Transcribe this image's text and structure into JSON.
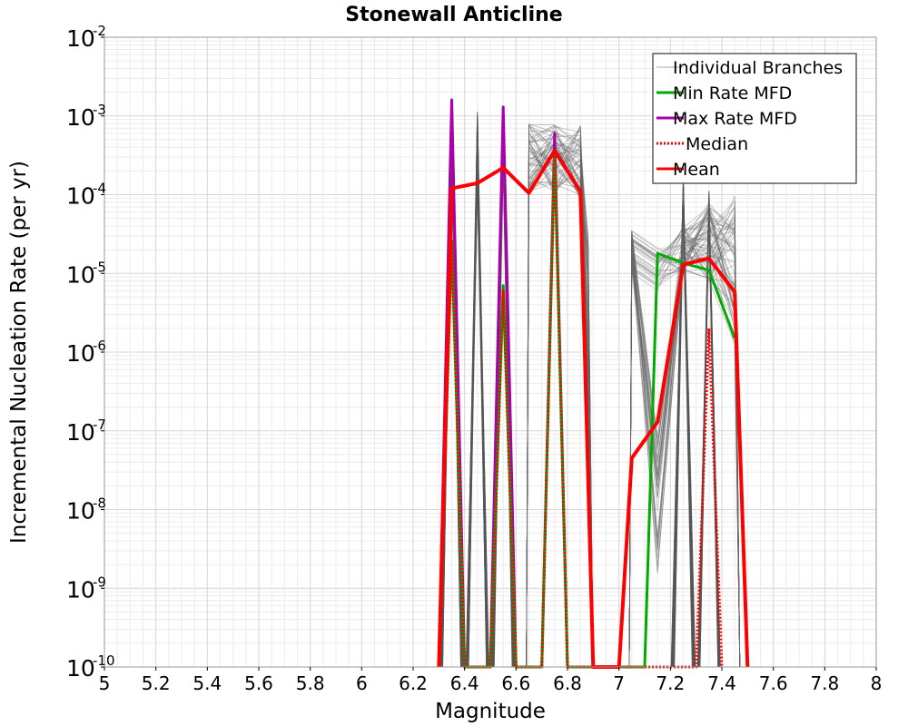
{
  "chart_data": {
    "type": "line",
    "title": "Stonewall Anticline",
    "xlabel": "Magnitude",
    "ylabel": "Incremental Nucleation Rate (per yr)",
    "xlim": [
      5,
      8
    ],
    "ylim": [
      1e-10,
      0.01
    ],
    "y_scale": "log",
    "grid": true,
    "legend_position": "top-right",
    "x_ticks": [
      "5",
      "5.2",
      "5.4",
      "5.6",
      "5.8",
      "6",
      "6.2",
      "6.4",
      "6.6",
      "6.8",
      "7",
      "7.2",
      "7.4",
      "7.6",
      "7.8",
      "8"
    ],
    "y_ticks": [
      {
        "base": "10",
        "exp": "-10"
      },
      {
        "base": "10",
        "exp": "-9"
      },
      {
        "base": "10",
        "exp": "-8"
      },
      {
        "base": "10",
        "exp": "-7"
      },
      {
        "base": "10",
        "exp": "-6"
      },
      {
        "base": "10",
        "exp": "-5"
      },
      {
        "base": "10",
        "exp": "-4"
      },
      {
        "base": "10",
        "exp": "-3"
      },
      {
        "base": "10",
        "exp": "-2"
      }
    ],
    "series": [
      {
        "name": "Mean",
        "color": "#ff0000",
        "style": "solid",
        "x": [
          6.3,
          6.35,
          6.45,
          6.55,
          6.65,
          6.75,
          6.85,
          6.9,
          7.0,
          7.05,
          7.15,
          7.25,
          7.35,
          7.45,
          7.5
        ],
        "y": [
          1e-10,
          0.00012,
          0.00014,
          0.00022,
          0.000105,
          0.00036,
          0.00011,
          1e-10,
          1e-10,
          4.5e-08,
          1.3e-07,
          1.3e-05,
          1.55e-05,
          5.8e-06,
          1e-10
        ]
      },
      {
        "name": "Median",
        "color": "#ff0000",
        "style": "dotted",
        "x": [
          6.3,
          6.35,
          6.4,
          6.5,
          6.55,
          6.6,
          6.7,
          6.75,
          6.8,
          7.3,
          7.35,
          7.4
        ],
        "y": [
          1e-10,
          2.5e-05,
          1e-10,
          1e-10,
          6e-06,
          1e-10,
          1e-10,
          0.00035,
          1e-10,
          1e-10,
          2e-06,
          1e-10
        ]
      },
      {
        "name": "Min Rate MFD",
        "color": "#00aa00",
        "style": "solid",
        "x": [
          6.3,
          6.35,
          6.4,
          6.5,
          6.55,
          6.6,
          6.7,
          6.75,
          6.8,
          7.1,
          7.15,
          7.25,
          7.35,
          7.45
        ],
        "y": [
          1e-10,
          2.6e-05,
          1e-10,
          1e-10,
          7e-06,
          1e-10,
          1e-10,
          0.00035,
          1e-10,
          1e-10,
          1.8e-05,
          1.35e-05,
          1.1e-05,
          1.5e-06
        ]
      },
      {
        "name": "Max Rate MFD",
        "color": "#aa00aa",
        "style": "solid",
        "x": [
          6.3,
          6.35,
          6.4,
          6.5,
          6.55,
          6.6,
          6.7,
          6.75,
          6.8
        ],
        "y": [
          1e-10,
          0.0016,
          1e-10,
          1e-10,
          0.0013,
          1e-10,
          1e-10,
          0.0006,
          1e-10
        ]
      }
    ],
    "legend": [
      {
        "label": "Individual Branches",
        "color": "#aaaaaa",
        "style": "thin"
      },
      {
        "label": "Min Rate MFD",
        "color": "#00aa00",
        "style": "solid"
      },
      {
        "label": "Max Rate MFD",
        "color": "#aa00aa",
        "style": "solid"
      },
      {
        "label": "Median",
        "color": "#ff0000",
        "style": "dotted"
      },
      {
        "label": "Mean",
        "color": "#ff0000",
        "style": "solid"
      }
    ]
  }
}
